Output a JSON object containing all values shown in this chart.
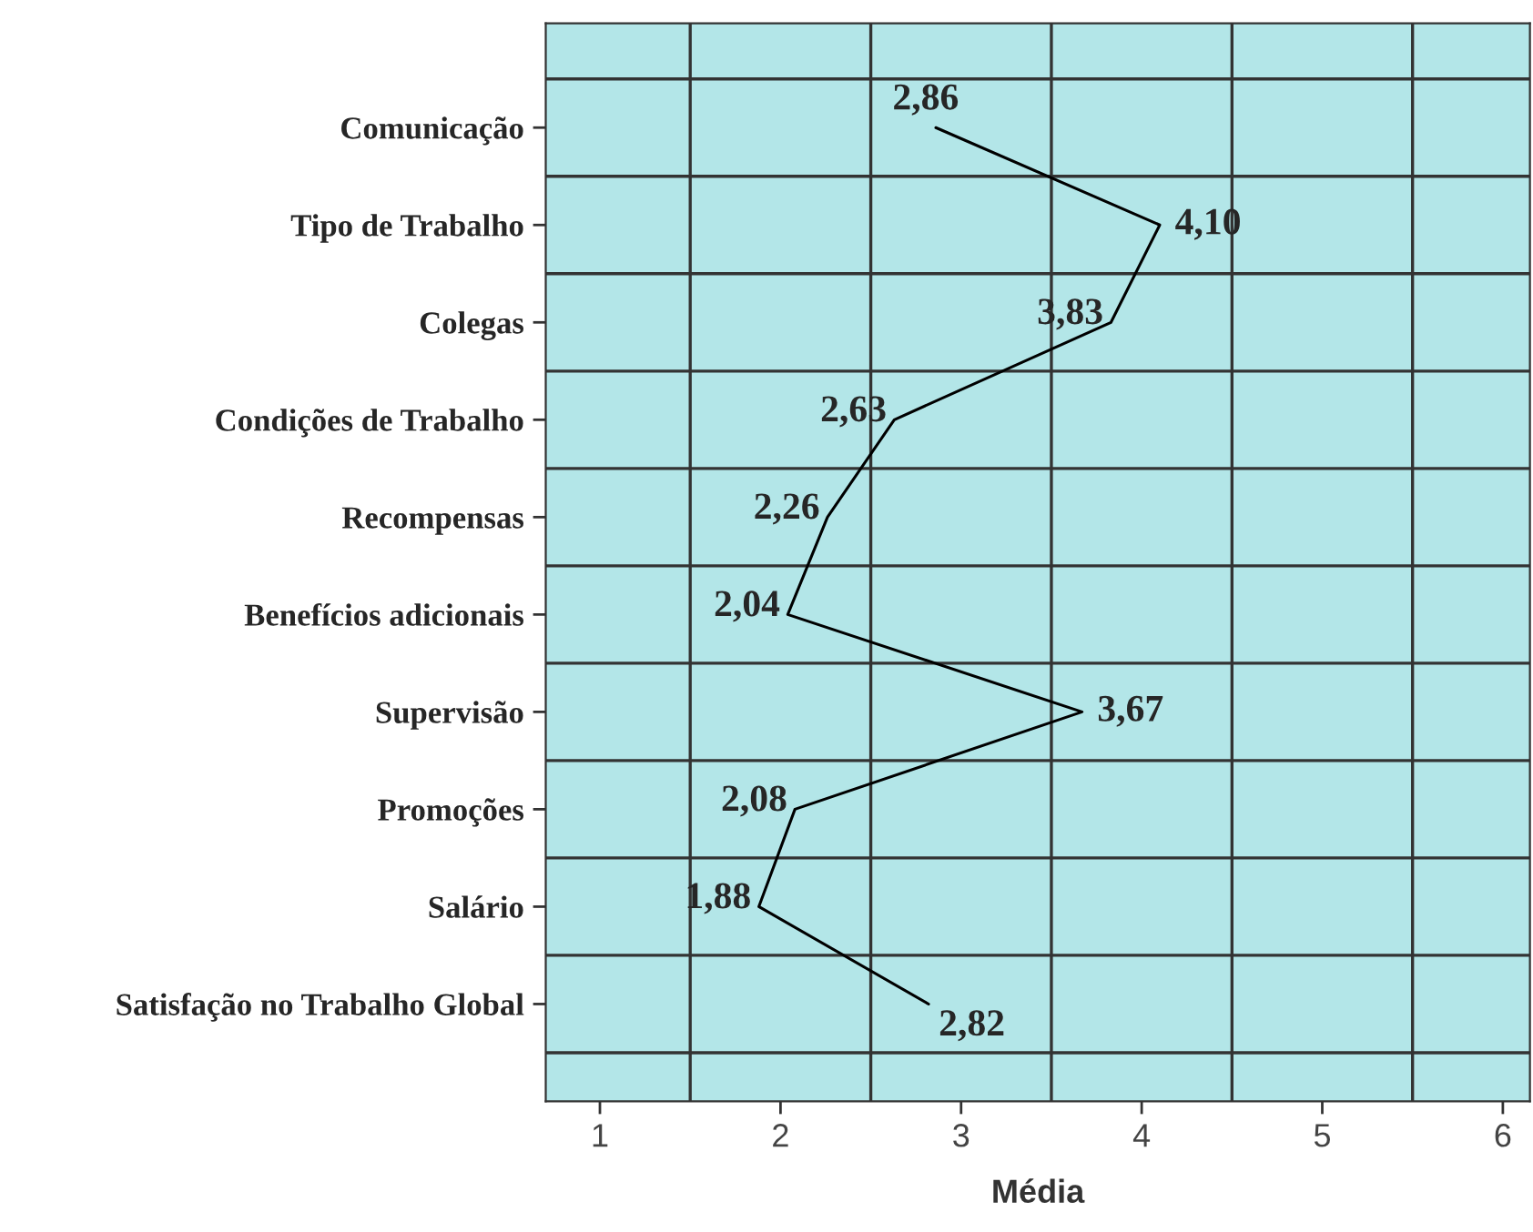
{
  "chart_data": {
    "type": "line",
    "orientation": "horizontal",
    "xlabel": "Média",
    "categories": [
      "Comunicação",
      "Tipo de Trabalho",
      "Colegas",
      "Condições de Trabalho",
      "Recompensas",
      "Benefícios adicionais",
      "Supervisão",
      "Promoções",
      "Salário",
      "Satisfação no Trabalho Global"
    ],
    "series": [
      {
        "color": "#000000",
        "values": [
          2.86,
          4.1,
          3.83,
          2.63,
          2.26,
          2.04,
          3.67,
          2.08,
          1.88,
          2.82
        ],
        "value_labels": [
          "2,86",
          "4,10",
          "3,83",
          "2,63",
          "2,26",
          "2,04",
          "3,67",
          "2,08",
          "1,88",
          "2,82"
        ]
      }
    ],
    "xlim": [
      0.7,
      6.15
    ],
    "xticks": [
      1,
      2,
      3,
      4,
      5,
      6
    ],
    "grid": true,
    "marker": "none",
    "line_style": "solid"
  }
}
